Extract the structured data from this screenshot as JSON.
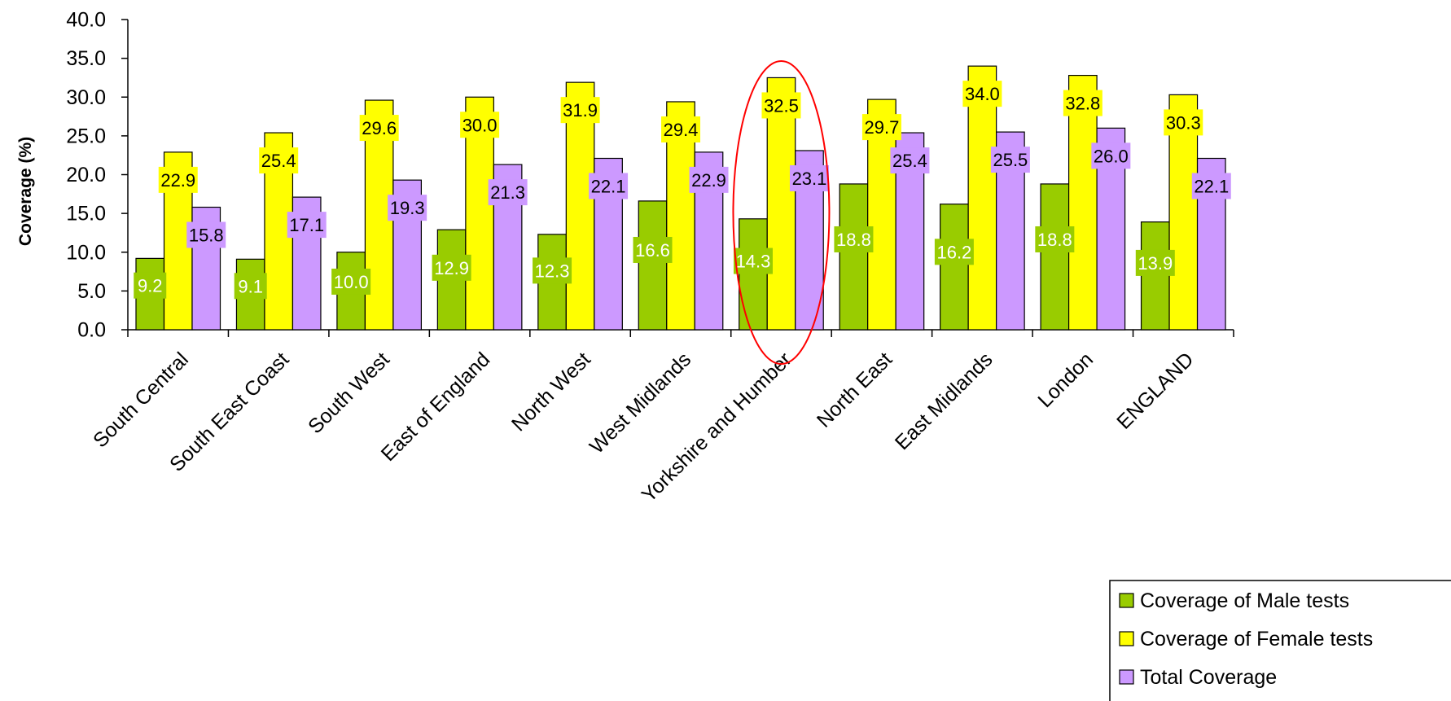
{
  "chart_data": {
    "type": "bar",
    "ylabel": "Coverage (%)",
    "ylim": [
      0,
      40
    ],
    "yticks": [
      "0.0",
      "5.0",
      "10.0",
      "15.0",
      "20.0",
      "25.0",
      "30.0",
      "35.0",
      "40.0"
    ],
    "categories": [
      "South Central",
      "South East Coast",
      "South West",
      "East of England",
      "North West",
      "West Midlands",
      "Yorkshire and Humber",
      "North East",
      "East Midlands",
      "London",
      "ENGLAND"
    ],
    "series": [
      {
        "name": "Coverage of Male tests",
        "color": "#99cc00",
        "label_color": "#ffffff",
        "values": [
          9.2,
          9.1,
          10.0,
          12.9,
          12.3,
          16.6,
          14.3,
          18.8,
          16.2,
          18.8,
          13.9
        ],
        "labels": [
          "9.2",
          "9.1",
          "10.0",
          "12.9",
          "12.3",
          "16.6",
          "14.3",
          "18.8",
          "16.2",
          "18.8",
          "13.9"
        ]
      },
      {
        "name": "Coverage of Female tests",
        "color": "#ffff00",
        "label_color": "#000000",
        "values": [
          22.9,
          25.4,
          29.6,
          30.0,
          31.9,
          29.4,
          32.5,
          29.7,
          34.0,
          32.8,
          30.3
        ],
        "labels": [
          "22.9",
          "25.4",
          "29.6",
          "30.0",
          "31.9",
          "29.4",
          "32.5",
          "29.7",
          "34.0",
          "32.8",
          "30.3"
        ]
      },
      {
        "name": "Total Coverage",
        "color": "#cc99ff",
        "label_color": "#000000",
        "values": [
          15.8,
          17.1,
          19.3,
          21.3,
          22.1,
          22.9,
          23.1,
          25.4,
          25.5,
          26.0,
          22.1
        ],
        "labels": [
          "15.8",
          "17.1",
          "19.3",
          "21.3",
          "22.1",
          "22.9",
          "23.1",
          "25.4",
          "25.5",
          "26.0",
          "22.1"
        ]
      }
    ],
    "legend": "bottom-right",
    "highlight": {
      "category": "Yorkshire and Humber",
      "color": "#ff0000",
      "shape": "ellipse"
    },
    "grid": false
  }
}
